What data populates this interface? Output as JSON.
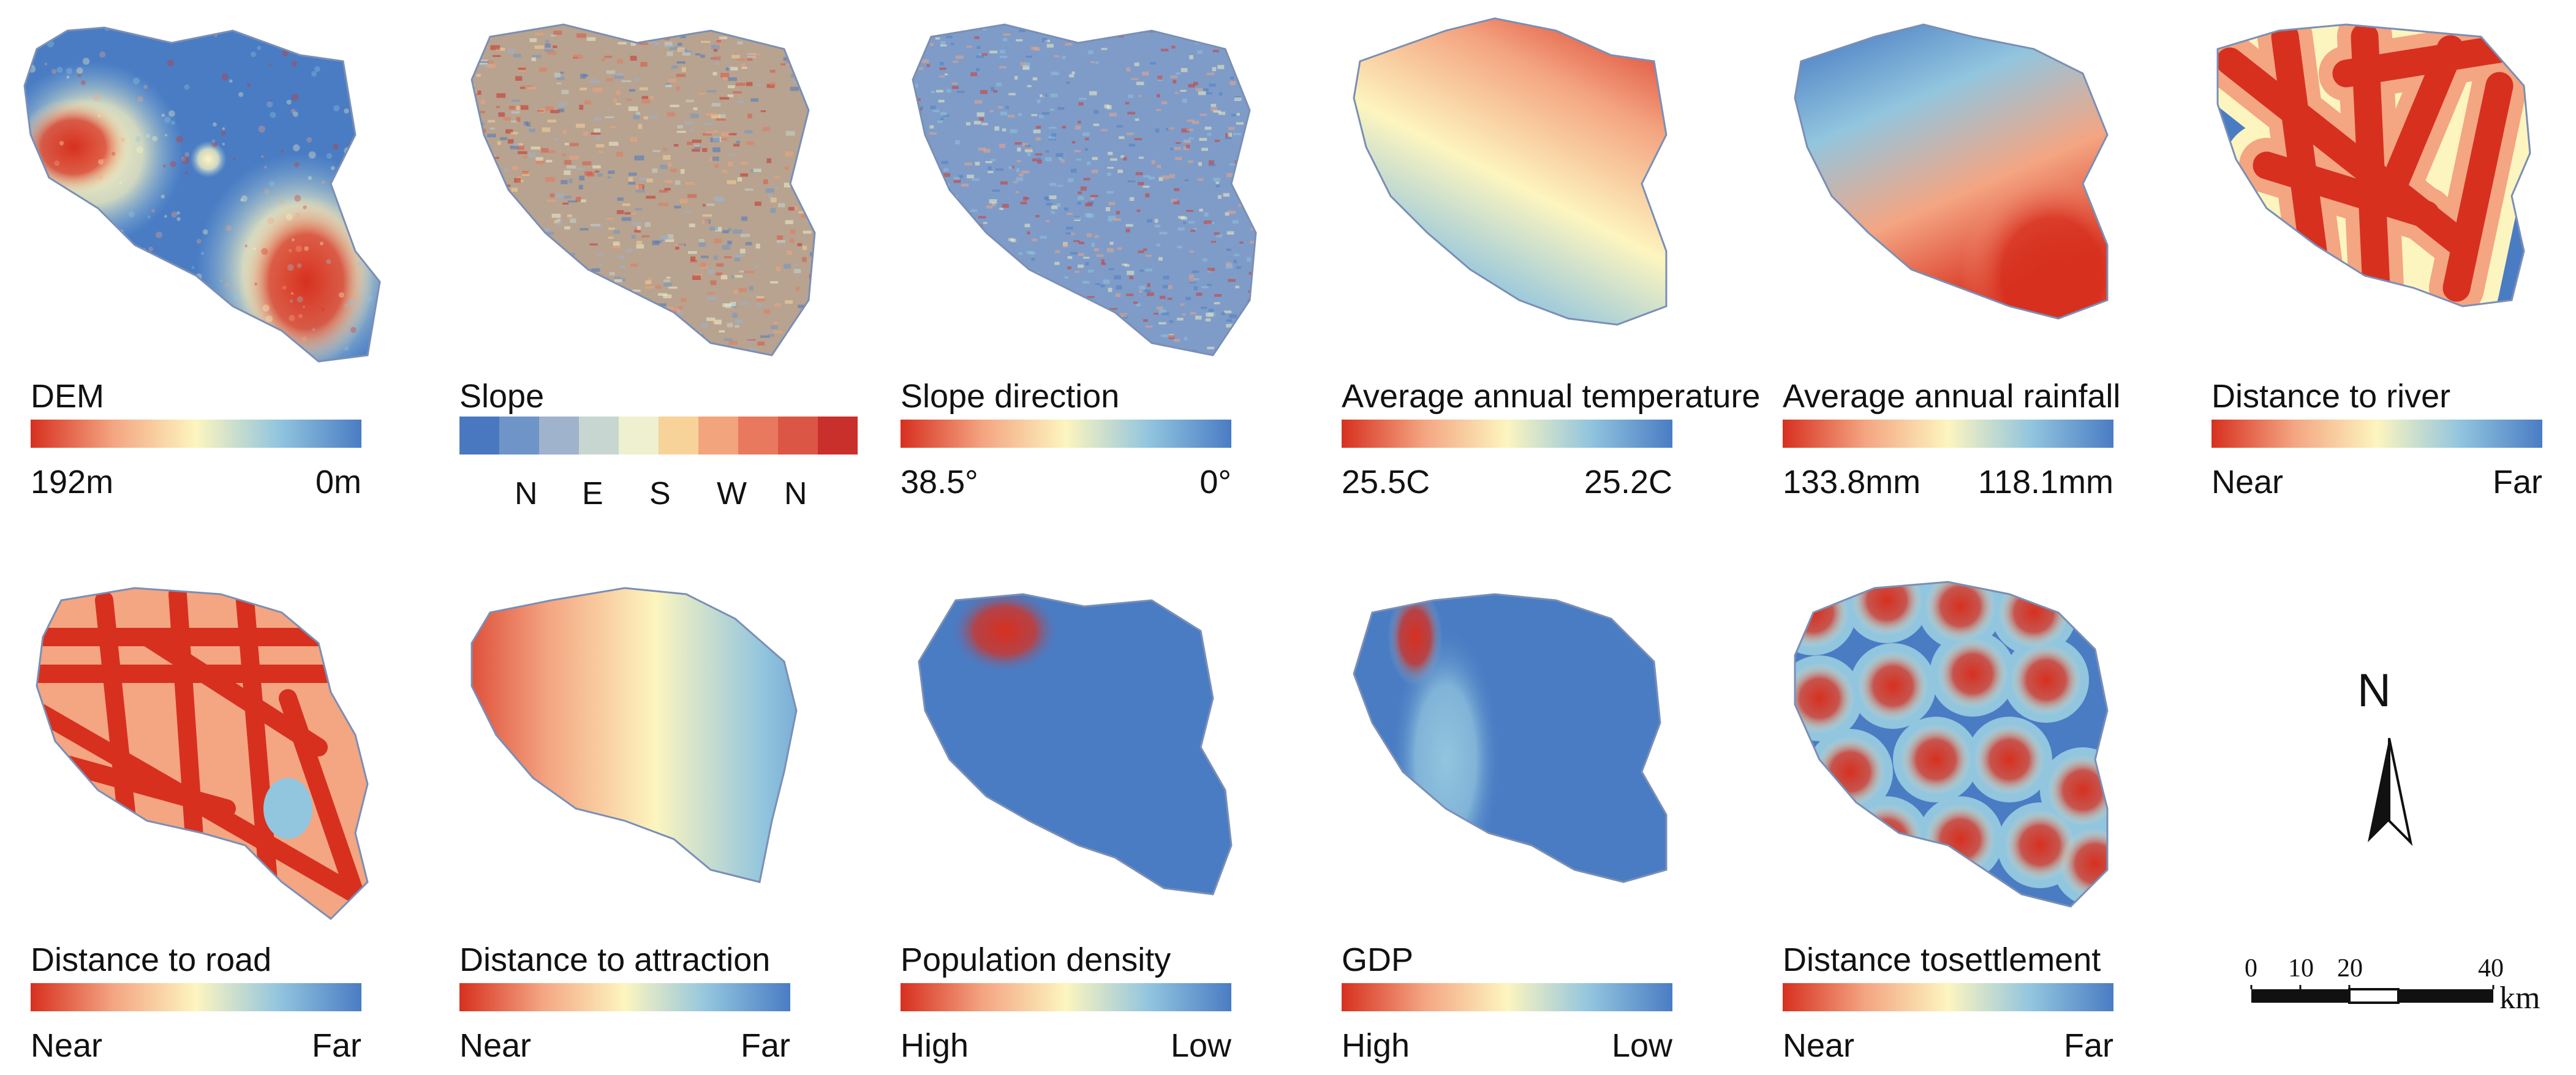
{
  "panels": [
    {
      "title": "DEM",
      "legend": "continuous",
      "min_label": "192m",
      "max_label": "0m",
      "map": "dem"
    },
    {
      "title": "Slope",
      "legend": "categorical",
      "classes": [
        "N",
        "E",
        "S",
        "W",
        "N"
      ],
      "map": "slope"
    },
    {
      "title": "Slope direction",
      "legend": "continuous",
      "min_label": "38.5°",
      "max_label": "0°",
      "map": "aspect"
    },
    {
      "title": "Average annual temperature",
      "legend": "continuous",
      "min_label": "25.5C",
      "max_label": "25.2C",
      "map": "temp"
    },
    {
      "title": "Average annual rainfall",
      "legend": "continuous",
      "min_label": "133.8mm",
      "max_label": "118.1mm",
      "map": "rain"
    },
    {
      "title": "Distance to river",
      "legend": "continuous",
      "min_label": "Near",
      "max_label": "Far",
      "map": "river"
    },
    {
      "title": "Distance to road",
      "legend": "continuous",
      "min_label": "Near",
      "max_label": "Far",
      "map": "road"
    },
    {
      "title": "Distance to attraction",
      "legend": "continuous",
      "min_label": "Near",
      "max_label": "Far",
      "map": "attraction"
    },
    {
      "title": "Population density",
      "legend": "continuous",
      "min_label": "High",
      "max_label": "Low",
      "map": "population"
    },
    {
      "title": "GDP",
      "legend": "continuous",
      "min_label": "High",
      "max_label": "Low",
      "map": "gdp"
    },
    {
      "title": "Distance tosettlement",
      "legend": "continuous",
      "min_label": "Near",
      "max_label": "Far",
      "map": "settlement"
    }
  ],
  "colors": {
    "ramp": [
      "#d7301f",
      "#f4a582",
      "#fdf5bf",
      "#92c5de",
      "#4a7cc4"
    ],
    "slope_classes": [
      "#4a78c0",
      "#6f95c8",
      "#9fb3cd",
      "#c7d6d0",
      "#eef0cf",
      "#f7d39a",
      "#f2a47c",
      "#e8795f",
      "#dc5645",
      "#c9302c"
    ],
    "outline": "#7a8fb5"
  },
  "compass": {
    "label": "N"
  },
  "scale_bar": {
    "ticks": [
      "0",
      "10",
      "20",
      "40"
    ],
    "unit": "km"
  }
}
